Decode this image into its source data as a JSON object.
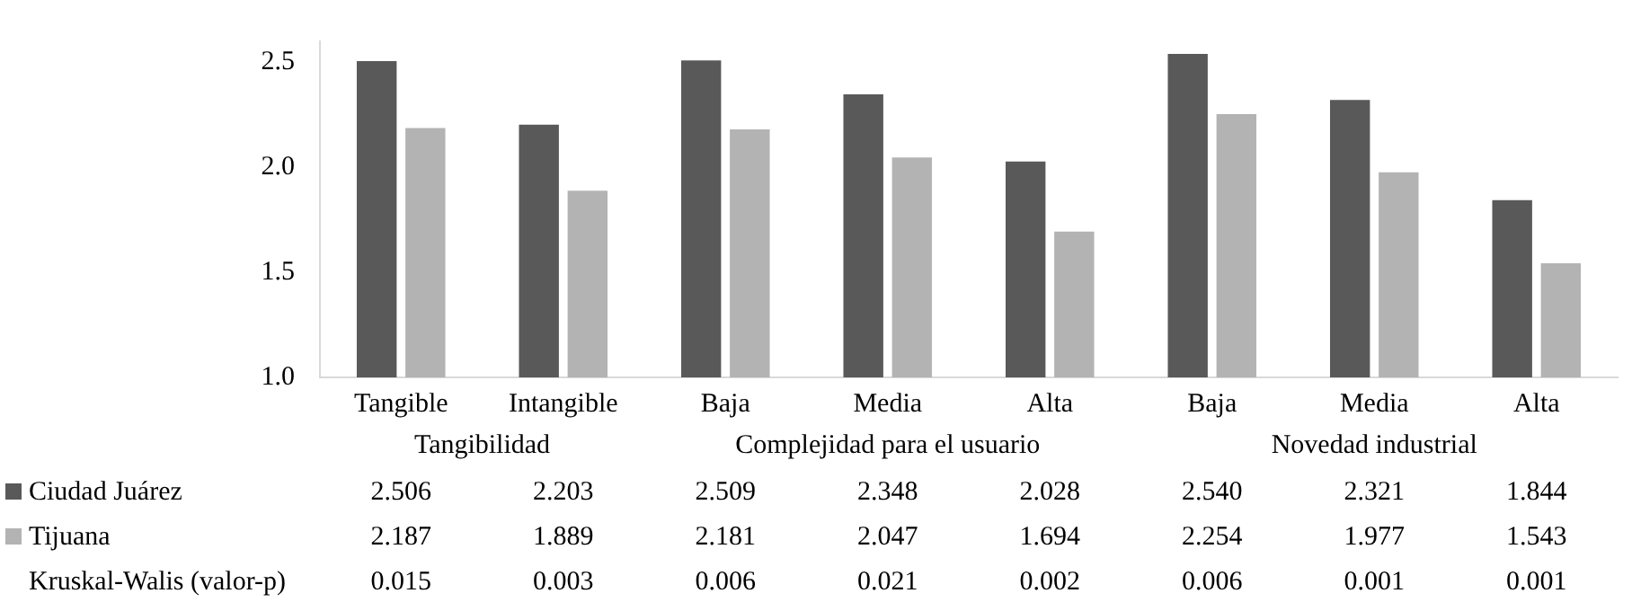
{
  "chart_data": {
    "type": "bar",
    "categories": [
      "Tangible",
      "Intangible",
      "Baja",
      "Media",
      "Alta",
      "Baja",
      "Media",
      "Alta"
    ],
    "series": [
      {
        "name": "Ciudad Juárez",
        "color": "#595959",
        "values": [
          2.506,
          2.203,
          2.509,
          2.348,
          2.028,
          2.54,
          2.321,
          1.844
        ],
        "value_labels": [
          "2.506",
          "2.203",
          "2.509",
          "2.348",
          "2.028",
          "2.540",
          "2.321",
          "1.844"
        ]
      },
      {
        "name": "Tijuana",
        "color": "#b3b3b3",
        "values": [
          2.187,
          1.889,
          2.181,
          2.047,
          1.694,
          2.254,
          1.977,
          1.543
        ],
        "value_labels": [
          "2.187",
          "1.889",
          "2.181",
          "2.047",
          "1.694",
          "2.254",
          "1.977",
          "1.543"
        ]
      }
    ],
    "ylim": [
      1,
      2.6
    ],
    "yticks": [
      {
        "value": 1,
        "label": "1.0"
      },
      {
        "value": 1.5,
        "label": "1.5"
      },
      {
        "value": 2,
        "label": "2.0"
      },
      {
        "value": 2.5,
        "label": "2.5"
      }
    ],
    "grid": false,
    "legend": "bottom",
    "annotations": [
      "Tangibilidad",
      "Complejidad para el usuario",
      "Novedad industrial",
      "Kruskal-Walis (valor-p)",
      "0.015",
      "0.003",
      "0.006",
      "0.021",
      "0.002",
      "0.006",
      "0.001",
      "0.001"
    ]
  }
}
